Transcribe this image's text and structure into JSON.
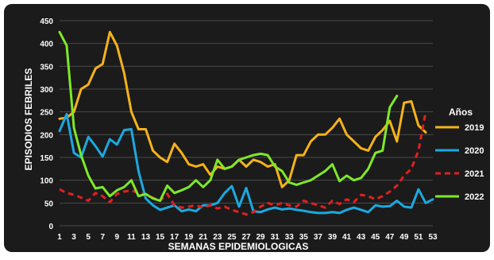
{
  "chart_data": {
    "type": "line",
    "title": "",
    "xlabel": "SEMANAS EPIDEMIOLOGICAS",
    "ylabel": "EPISODIOS FEBRILES",
    "legend_title": "Años",
    "legend_position": "right",
    "ylim": [
      0,
      450
    ],
    "yticks": [
      0,
      50,
      100,
      150,
      200,
      250,
      300,
      350,
      400,
      450
    ],
    "xlim": [
      1,
      53
    ],
    "xticks": [
      1,
      3,
      5,
      7,
      9,
      11,
      13,
      15,
      17,
      19,
      21,
      23,
      25,
      27,
      29,
      31,
      33,
      35,
      37,
      39,
      41,
      43,
      45,
      47,
      49,
      51,
      53
    ],
    "grid": "horizontal",
    "background": "#1b1b1b",
    "series": [
      {
        "name": "2019",
        "color": "#f5b21a",
        "dashed": false,
        "x": [
          1,
          2,
          3,
          4,
          5,
          6,
          7,
          8,
          9,
          10,
          11,
          12,
          13,
          14,
          15,
          16,
          17,
          18,
          19,
          20,
          21,
          22,
          23,
          24,
          25,
          26,
          27,
          28,
          29,
          30,
          31,
          32,
          33,
          34,
          35,
          36,
          37,
          38,
          39,
          40,
          41,
          42,
          43,
          44,
          45,
          46,
          47,
          48,
          49,
          50,
          51,
          52
        ],
        "values": [
          235,
          237,
          250,
          300,
          310,
          345,
          355,
          425,
          395,
          335,
          250,
          212,
          212,
          165,
          150,
          140,
          180,
          160,
          135,
          130,
          135,
          112,
          130,
          125,
          130,
          145,
          130,
          145,
          140,
          130,
          135,
          85,
          100,
          155,
          155,
          185,
          200,
          200,
          215,
          235,
          200,
          185,
          170,
          165,
          195,
          210,
          230,
          185,
          270,
          273,
          220,
          205
        ]
      },
      {
        "name": "2020",
        "color": "#1ba9e0",
        "dashed": false,
        "x": [
          1,
          2,
          3,
          4,
          5,
          6,
          7,
          8,
          9,
          10,
          11,
          12,
          13,
          14,
          15,
          16,
          17,
          18,
          19,
          20,
          21,
          22,
          23,
          24,
          25,
          26,
          27,
          28,
          29,
          30,
          31,
          32,
          33,
          34,
          35,
          36,
          37,
          38,
          39,
          40,
          41,
          42,
          43,
          44,
          45,
          46,
          47,
          48,
          49,
          50,
          51,
          52,
          53
        ],
        "values": [
          208,
          245,
          160,
          150,
          195,
          175,
          152,
          190,
          178,
          210,
          212,
          120,
          60,
          45,
          35,
          40,
          45,
          32,
          36,
          32,
          45,
          45,
          50,
          72,
          87,
          42,
          83,
          32,
          30,
          36,
          40,
          36,
          38,
          35,
          33,
          30,
          28,
          28,
          30,
          28,
          35,
          40,
          35,
          30,
          45,
          42,
          43,
          55,
          42,
          40,
          80,
          50,
          58
        ]
      },
      {
        "name": "2021",
        "color": "#e02020",
        "dashed": true,
        "x": [
          1,
          2,
          3,
          4,
          5,
          6,
          7,
          8,
          9,
          10,
          11,
          12,
          13,
          14,
          15,
          16,
          17,
          18,
          19,
          20,
          21,
          22,
          23,
          24,
          25,
          26,
          27,
          28,
          29,
          30,
          31,
          32,
          33,
          34,
          35,
          36,
          37,
          38,
          39,
          40,
          41,
          42,
          43,
          44,
          45,
          46,
          47,
          48,
          49,
          50,
          51,
          52
        ],
        "values": [
          80,
          72,
          68,
          62,
          55,
          72,
          65,
          52,
          70,
          75,
          78,
          72,
          68,
          62,
          55,
          70,
          45,
          40,
          42,
          45,
          40,
          45,
          38,
          42,
          35,
          30,
          25,
          30,
          42,
          50,
          45,
          50,
          45,
          42,
          55,
          50,
          45,
          40,
          55,
          48,
          58,
          52,
          68,
          65,
          58,
          65,
          75,
          88,
          110,
          125,
          165,
          250
        ]
      },
      {
        "name": "2022",
        "color": "#7ee829",
        "dashed": false,
        "x": [
          1,
          2,
          3,
          4,
          5,
          6,
          7,
          8,
          9,
          10,
          11,
          12,
          13,
          14,
          15,
          16,
          17,
          18,
          19,
          20,
          21,
          22,
          23,
          24,
          25,
          26,
          27,
          28,
          29,
          30,
          31,
          32,
          33,
          34,
          35,
          36,
          37,
          38,
          39,
          40,
          41,
          42,
          43,
          44,
          45,
          46,
          47,
          48
        ],
        "values": [
          425,
          395,
          215,
          155,
          110,
          82,
          85,
          65,
          78,
          85,
          100,
          65,
          70,
          60,
          55,
          88,
          72,
          78,
          85,
          100,
          85,
          100,
          145,
          125,
          130,
          145,
          150,
          155,
          158,
          155,
          130,
          120,
          95,
          90,
          95,
          100,
          110,
          120,
          135,
          98,
          110,
          100,
          105,
          125,
          160,
          165,
          260,
          285
        ]
      }
    ]
  }
}
